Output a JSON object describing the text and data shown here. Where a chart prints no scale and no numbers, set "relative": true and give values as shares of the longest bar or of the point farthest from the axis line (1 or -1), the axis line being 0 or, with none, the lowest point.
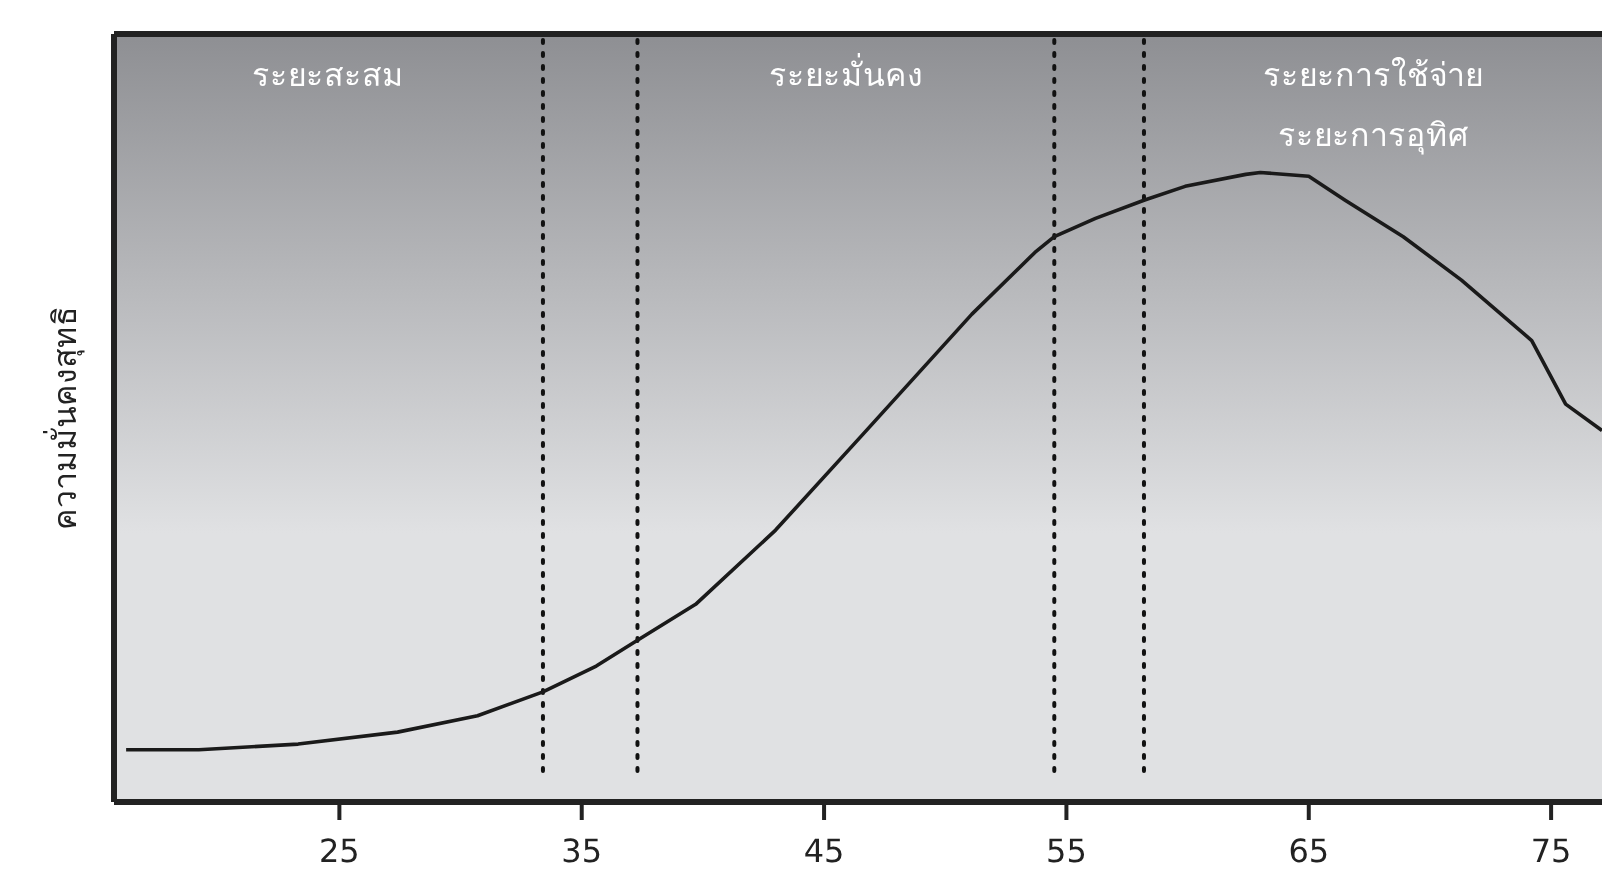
{
  "chart_data": {
    "type": "line",
    "relative": true,
    "ylabel": "ความมั่นคงสุทธิ",
    "xlim": [
      15.7,
      77.1
    ],
    "xticks": [
      25,
      35,
      45,
      55,
      65,
      75
    ],
    "series": [
      {
        "color": "#1a1a1a",
        "x": [
          16.2,
          19.2,
          23.3,
          27.4,
          30.7,
          33.4,
          35.6,
          37.3,
          39.7,
          43.0,
          46.6,
          51.1,
          53.7,
          54.5,
          56.2,
          58.2,
          59.9,
          62.4,
          63.0,
          65.0,
          66.5,
          68.9,
          71.3,
          74.2,
          75.6,
          77.1
        ],
        "values": [
          0.083,
          0.083,
          0.092,
          0.111,
          0.137,
          0.175,
          0.216,
          0.257,
          0.314,
          0.432,
          0.584,
          0.775,
          0.873,
          0.898,
          0.927,
          0.956,
          0.978,
          0.997,
          1.0,
          0.994,
          0.956,
          0.898,
          0.829,
          0.733,
          0.632,
          0.59
        ]
      }
    ],
    "ref_lines": [
      {
        "axis": "x",
        "value": 33.4,
        "line_style": "dotted"
      },
      {
        "axis": "x",
        "value": 37.3,
        "line_style": "dotted"
      },
      {
        "axis": "x",
        "value": 54.5,
        "line_style": "dotted"
      },
      {
        "axis": "x",
        "value": 58.2,
        "line_style": "dotted"
      }
    ],
    "annotations": [
      "ระยะสะสม",
      "ระยะมั่นคง",
      "ระยะการใช้จ่าย",
      "ระยะการอุทิศ"
    ],
    "marker": "none",
    "line_style": "solid"
  }
}
